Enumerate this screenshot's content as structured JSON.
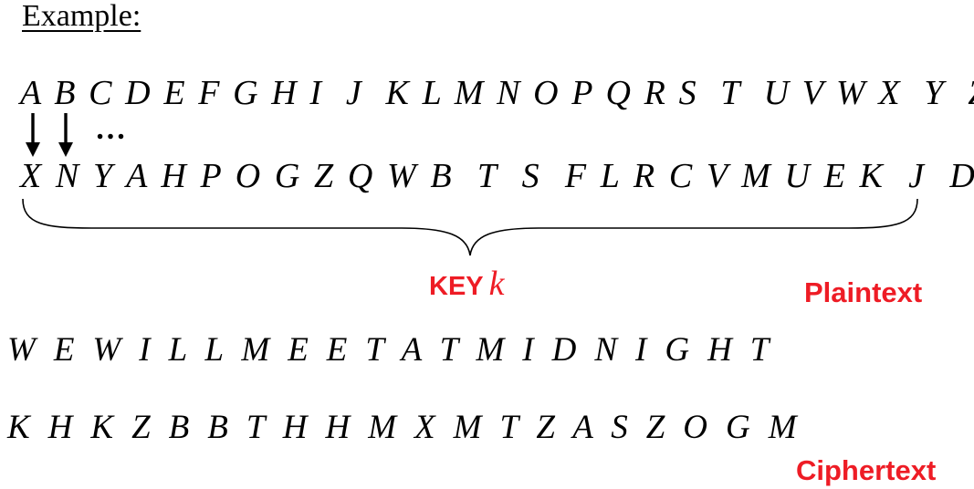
{
  "heading": "Example:",
  "plain_alphabet": "A B C D E F G H I  J  K L M N O P Q R S  T  U V W X  Y  Z",
  "cipher_alphabet": "X N Y A H P O G Z Q W B  T  S  F L R C V M U E K  J  D I",
  "ellipsis": "…",
  "key_label": "KEY",
  "key_variable": "k",
  "plaintext_label": "Plaintext",
  "plaintext": "W  E  W  I  L  L  M  E  E  T  A  T  M  I  D  N  I  G  H  T",
  "ciphertext": "K  H  K  Z  B  B  T  H  H  M  X  M  T  Z  A  S  Z  O  G  M",
  "ciphertext_label": "Ciphertext",
  "colors": {
    "text": "#000000",
    "accent_red": "#ee1c25",
    "background": "#ffffff"
  },
  "icons": [
    "down-arrow-icon",
    "down-arrow-icon",
    "curly-brace-icon"
  ]
}
